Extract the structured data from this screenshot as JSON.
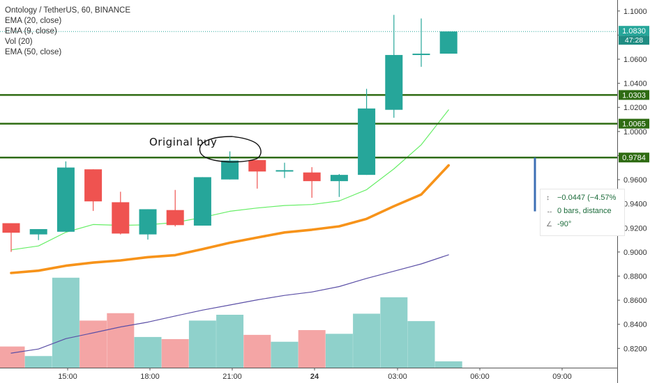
{
  "header": {
    "symbol_title": "Ontology / TetherUS, 60, BINANCE",
    "indicators": [
      "EMA (20, close)",
      "EMA (9, close)",
      "Vol (20)",
      "EMA (50, close)"
    ]
  },
  "annotation": {
    "text": "Original buy"
  },
  "measure_tool": {
    "change_text": "−0.0447 (−4.57%",
    "bars_text": "0 bars, distance",
    "angle_text": "-90°"
  },
  "colors": {
    "up": "#26a69a",
    "down": "#ef5350",
    "ema9": "#66ee66",
    "ema20": "#f7931a",
    "ema50": "#5b4fa6",
    "level": "#2e6b12",
    "vol_up": "#8fd1cb",
    "vol_down": "#f4a5a5",
    "measure": "#3c6fb4"
  },
  "chart_data": {
    "type": "candlestick",
    "title": "Ontology / TetherUS, 60, BINANCE",
    "x_tick_labels": [
      "15:00",
      "18:00",
      "21:00",
      "24",
      "03:00",
      "06:00",
      "09:00"
    ],
    "y_tick_labels": [
      "0.8200",
      "0.8400",
      "0.8600",
      "0.8800",
      "0.9000",
      "0.9200",
      "0.9400",
      "0.9600",
      "0.9800",
      "1.0000",
      "1.0200",
      "1.0400",
      "1.0600",
      "1.0800",
      "1.1000"
    ],
    "ylim": [
      0.804,
      1.1045
    ],
    "candles": [
      {
        "open": 0.9239,
        "high": 0.9239,
        "low": 0.9001,
        "close": 0.916
      },
      {
        "open": 0.9146,
        "high": 0.9181,
        "low": 0.9099,
        "close": 0.919
      },
      {
        "open": 0.9168,
        "high": 0.9752,
        "low": 0.9168,
        "close": 0.9701
      },
      {
        "open": 0.9686,
        "high": 0.9686,
        "low": 0.9341,
        "close": 0.942
      },
      {
        "open": 0.9413,
        "high": 0.95,
        "low": 0.9146,
        "close": 0.9153
      },
      {
        "open": 0.9146,
        "high": 0.9355,
        "low": 0.9103,
        "close": 0.9355
      },
      {
        "open": 0.9348,
        "high": 0.9515,
        "low": 0.9212,
        "close": 0.9223
      },
      {
        "open": 0.9219,
        "high": 0.9621,
        "low": 0.9219,
        "close": 0.9621
      },
      {
        "open": 0.9602,
        "high": 0.9835,
        "low": 0.9602,
        "close": 0.9759
      },
      {
        "open": 0.9763,
        "high": 0.9763,
        "low": 0.9526,
        "close": 0.9668
      },
      {
        "open": 0.9679,
        "high": 0.9741,
        "low": 0.9614,
        "close": 0.9679
      },
      {
        "open": 0.966,
        "high": 0.9704,
        "low": 0.945,
        "close": 0.9588
      },
      {
        "open": 0.9588,
        "high": 0.9647,
        "low": 0.9457,
        "close": 0.964
      },
      {
        "open": 0.964,
        "high": 1.0354,
        "low": 0.964,
        "close": 1.0191
      },
      {
        "open": 1.018,
        "high": 1.0968,
        "low": 1.0114,
        "close": 1.0635
      },
      {
        "open": 1.0646,
        "high": 1.0938,
        "low": 1.0537,
        "close": 1.0646
      },
      {
        "open": 1.0646,
        "high": 1.083,
        "low": 1.0646,
        "close": 1.083
      }
    ],
    "volume_values": [
      4.0,
      2.2,
      17.0,
      8.9,
      10.3,
      5.8,
      5.4,
      8.9,
      10.0,
      6.2,
      4.9,
      7.1,
      6.4,
      10.2,
      13.3,
      8.8,
      1.2
    ],
    "ema9": [
      0.9018,
      0.905,
      0.9164,
      0.9228,
      0.9221,
      0.9226,
      0.9245,
      0.9287,
      0.9338,
      0.9365,
      0.9386,
      0.9394,
      0.9424,
      0.9517,
      0.969,
      0.989,
      1.018
    ],
    "ema20": [
      0.8826,
      0.8845,
      0.8886,
      0.8912,
      0.893,
      0.8957,
      0.8974,
      0.9024,
      0.9077,
      0.912,
      0.9162,
      0.9185,
      0.9213,
      0.9275,
      0.938,
      0.9477,
      0.9719
    ],
    "ema50": [
      0.8161,
      0.8195,
      0.8281,
      0.8329,
      0.8378,
      0.8418,
      0.8469,
      0.8518,
      0.856,
      0.8603,
      0.864,
      0.8668,
      0.8713,
      0.8781,
      0.8841,
      0.8901,
      0.8977
    ],
    "levels": [
      1.0303,
      1.0065,
      0.9784
    ],
    "last_price": 1.083,
    "countdown": "47:28"
  }
}
